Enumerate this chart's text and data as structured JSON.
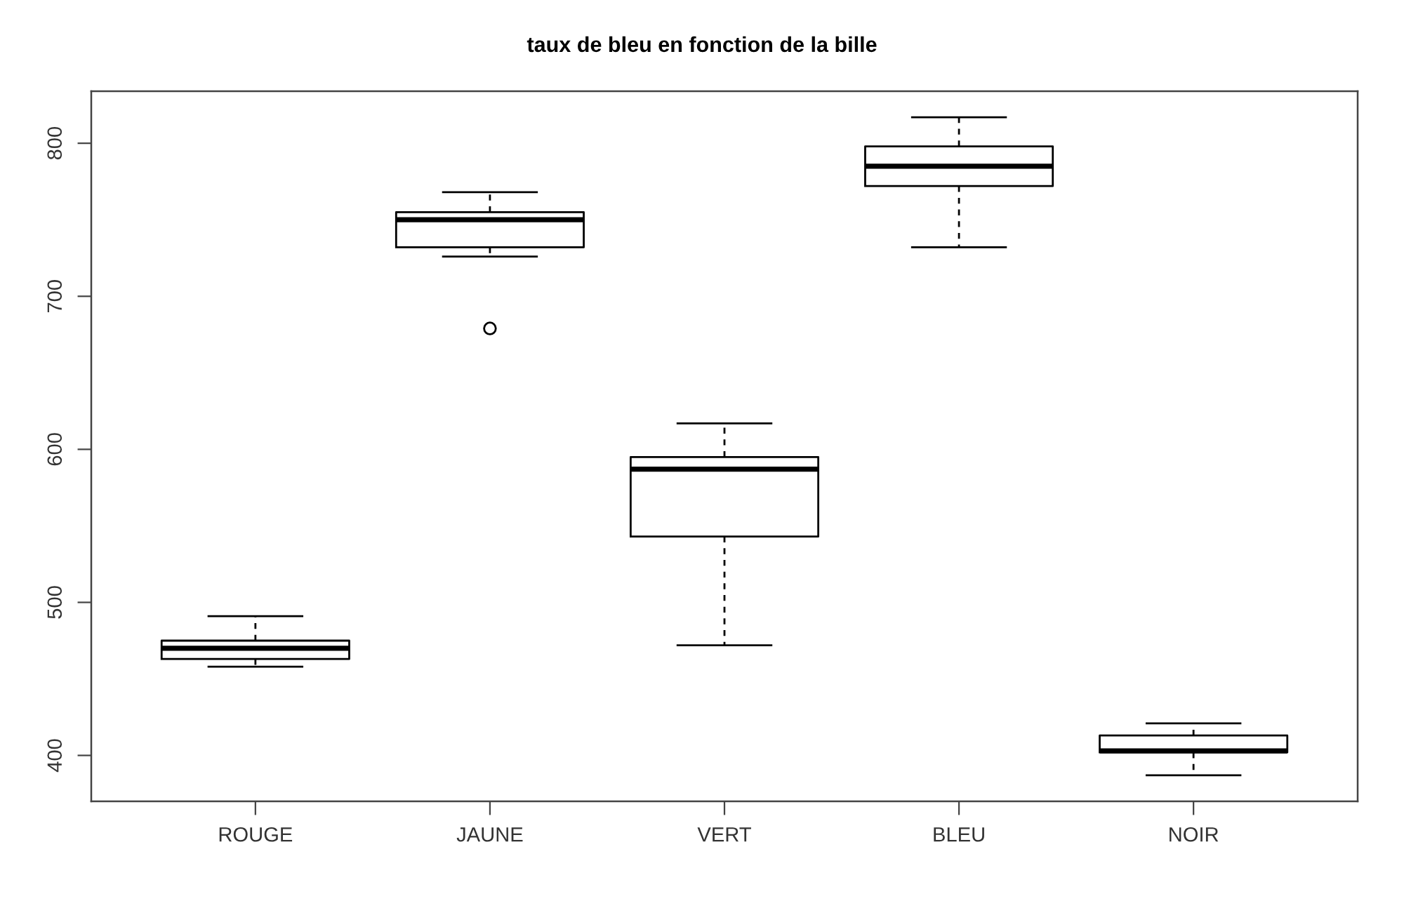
{
  "chart_data": {
    "type": "box",
    "title": "taux de bleu en fonction de la bille",
    "categories": [
      "ROUGE",
      "JAUNE",
      "VERT",
      "BLEU",
      "NOIR"
    ],
    "boxes": [
      {
        "low": 458,
        "q1": 463,
        "median": 470,
        "q3": 475,
        "high": 491
      },
      {
        "low": 726,
        "q1": 732,
        "median": 750,
        "q3": 755,
        "high": 768,
        "outliers": [
          679
        ]
      },
      {
        "low": 472,
        "q1": 543,
        "median": 587,
        "q3": 595,
        "high": 617
      },
      {
        "low": 732,
        "q1": 772,
        "median": 785,
        "q3": 798,
        "high": 817
      },
      {
        "low": 387,
        "q1": 402,
        "median": 403,
        "q3": 413,
        "high": 421
      }
    ],
    "color": "#000000",
    "ylim": [
      370,
      834
    ],
    "yticks": [
      400,
      500,
      600,
      700,
      800
    ],
    "line_style": "dashed",
    "marker": "circle",
    "grid": false
  }
}
